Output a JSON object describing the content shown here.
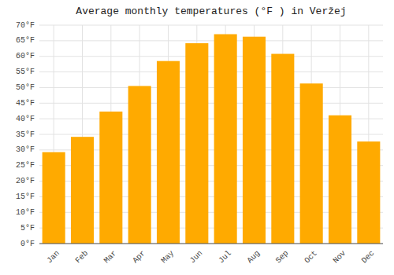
{
  "chart_data": {
    "type": "bar",
    "title": "Average monthly temperatures (°F ) in Veržej",
    "categories": [
      "Jan",
      "Feb",
      "Mar",
      "Apr",
      "May",
      "Jun",
      "Jul",
      "Aug",
      "Sep",
      "Oct",
      "Nov",
      "Dec"
    ],
    "values": [
      29.3,
      34.2,
      42.3,
      50.5,
      58.5,
      64.2,
      67.1,
      66.3,
      60.8,
      51.3,
      41.1,
      32.7
    ],
    "color": "#FFAA00",
    "ylim": [
      0,
      70
    ],
    "yticks": [
      {
        "value": 0,
        "label": "0°F"
      },
      {
        "value": 5,
        "label": "5°F"
      },
      {
        "value": 10,
        "label": "10°F"
      },
      {
        "value": 15,
        "label": "15°F"
      },
      {
        "value": 20,
        "label": "20°F"
      },
      {
        "value": 25,
        "label": "25°F"
      },
      {
        "value": 30,
        "label": "30°F"
      },
      {
        "value": 35,
        "label": "35°F"
      },
      {
        "value": 40,
        "label": "40°F"
      },
      {
        "value": 45,
        "label": "45°F"
      },
      {
        "value": 50,
        "label": "50°F"
      },
      {
        "value": 55,
        "label": "55°F"
      },
      {
        "value": 60,
        "label": "60°F"
      },
      {
        "value": 65,
        "label": "65°F"
      },
      {
        "value": 70,
        "label": "70°F"
      }
    ],
    "grid": true
  }
}
